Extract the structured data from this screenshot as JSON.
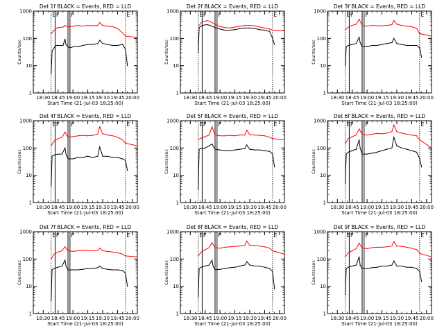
{
  "figure": {
    "xlabel": "Start Time (21-Jul-03 18:25:00)",
    "ylabel": "Counts/sec",
    "xtick_labels": [
      "18:30",
      "18:45",
      "19:00",
      "19:15",
      "19:30",
      "19:45",
      "20:00"
    ],
    "ytick_labels": [
      "1",
      "10",
      "100",
      "1000"
    ],
    "flag_letters": [
      "E",
      "F",
      "F",
      "E"
    ],
    "colors": {
      "events": "#000000",
      "lld": "#ff0000",
      "axes": "#000000",
      "background": "#ffffff"
    }
  },
  "chart_data": [
    {
      "type": "line",
      "title": "Det 1f BLACK = Events, RED = LLD",
      "xlabel": "Start Time (21-Jul-03 18:25:00)",
      "ylabel": "Counts/sec",
      "ylog": true,
      "ylim": [
        1,
        1000
      ],
      "xlim_minutes": [
        -5,
        100
      ],
      "markers": {
        "E": [
          13,
          88
        ],
        "F": [
          17,
          30,
          32
        ]
      },
      "series": [
        {
          "name": "Events",
          "color": "#000000",
          "x": [
            13,
            14,
            16,
            18,
            22,
            25,
            27,
            28,
            30,
            32,
            36,
            40,
            45,
            50,
            55,
            60,
            62,
            65,
            70,
            75,
            80,
            85,
            88,
            90
          ],
          "y": [
            5,
            35,
            45,
            55,
            55,
            55,
            95,
            60,
            50,
            45,
            50,
            50,
            55,
            60,
            60,
            65,
            85,
            65,
            60,
            55,
            55,
            60,
            40,
            10
          ]
        },
        {
          "name": "LLD",
          "color": "#ff0000",
          "x": [
            13,
            16,
            20,
            25,
            27,
            30,
            35,
            40,
            45,
            50,
            55,
            60,
            62,
            65,
            70,
            75,
            80,
            85,
            88,
            100
          ],
          "y": [
            150,
            200,
            250,
            260,
            300,
            260,
            280,
            300,
            280,
            300,
            290,
            300,
            380,
            300,
            280,
            270,
            230,
            160,
            120,
            110
          ]
        }
      ]
    },
    {
      "type": "line",
      "title": "Det 2f BLACK = Events, RED = LLD",
      "xlabel": "Start Time (21-Jul-03 18:25:00)",
      "ylabel": "Counts/sec",
      "ylog": true,
      "ylim": [
        1,
        1000
      ],
      "xlim_minutes": [
        -5,
        100
      ],
      "markers": {
        "E": [
          13,
          88
        ],
        "F": [
          17,
          30,
          32
        ]
      },
      "series": [
        {
          "name": "Events",
          "color": "#000000",
          "x": [
            13,
            14,
            17,
            22,
            25,
            30,
            35,
            40,
            45,
            50,
            55,
            60,
            65,
            70,
            75,
            80,
            85,
            88,
            90
          ],
          "y": [
            30,
            250,
            300,
            320,
            300,
            250,
            220,
            200,
            200,
            210,
            230,
            240,
            240,
            230,
            210,
            200,
            180,
            100,
            60
          ]
        },
        {
          "name": "LLD",
          "color": "#ff0000",
          "x": [
            13,
            17,
            22,
            25,
            30,
            35,
            40,
            45,
            50,
            55,
            60,
            65,
            70,
            75,
            80,
            85,
            88,
            100
          ],
          "y": [
            280,
            400,
            450,
            420,
            330,
            270,
            250,
            240,
            260,
            280,
            300,
            300,
            290,
            260,
            240,
            220,
            200,
            190
          ]
        }
      ]
    },
    {
      "type": "line",
      "title": "Det 3f BLACK = Events, RED = LLD",
      "xlabel": "Start Time (21-Jul-03 18:25:00)",
      "ylabel": "Counts/sec",
      "ylog": true,
      "ylim": [
        1,
        1000
      ],
      "xlim_minutes": [
        -5,
        100
      ],
      "markers": {
        "E": [
          13,
          88
        ],
        "F": [
          17,
          30,
          32
        ]
      },
      "series": [
        {
          "name": "Events",
          "color": "#000000",
          "x": [
            13,
            14,
            16,
            20,
            24,
            27,
            28,
            30,
            35,
            40,
            45,
            50,
            55,
            60,
            62,
            65,
            70,
            75,
            80,
            85,
            88,
            90
          ],
          "y": [
            10,
            50,
            55,
            60,
            65,
            110,
            70,
            50,
            50,
            55,
            55,
            60,
            65,
            70,
            100,
            65,
            60,
            55,
            55,
            55,
            45,
            20
          ]
        },
        {
          "name": "LLD",
          "color": "#ff0000",
          "x": [
            13,
            16,
            20,
            24,
            27,
            30,
            35,
            40,
            45,
            50,
            55,
            60,
            62,
            65,
            70,
            75,
            80,
            85,
            88,
            100
          ],
          "y": [
            200,
            260,
            300,
            330,
            500,
            300,
            280,
            300,
            290,
            290,
            300,
            320,
            450,
            330,
            300,
            280,
            270,
            230,
            150,
            120
          ]
        }
      ]
    },
    {
      "type": "line",
      "title": "Det 4f BLACK = Events, RED = LLD",
      "xlabel": "Start Time (21-Jul-03 18:25:00)",
      "ylabel": "Counts/sec",
      "ylog": true,
      "ylim": [
        1,
        1000
      ],
      "xlim_minutes": [
        -5,
        100
      ],
      "markers": {
        "E": [
          13,
          88
        ],
        "F": [
          17,
          30,
          32
        ]
      },
      "series": [
        {
          "name": "Events",
          "color": "#000000",
          "x": [
            13,
            14,
            16,
            20,
            24,
            27,
            28,
            30,
            35,
            40,
            45,
            50,
            55,
            60,
            62,
            65,
            70,
            75,
            80,
            85,
            88,
            90
          ],
          "y": [
            4,
            50,
            55,
            60,
            60,
            100,
            60,
            40,
            40,
            45,
            45,
            50,
            45,
            50,
            110,
            50,
            50,
            45,
            45,
            40,
            35,
            15
          ]
        },
        {
          "name": "LLD",
          "color": "#ff0000",
          "x": [
            13,
            16,
            20,
            24,
            27,
            30,
            35,
            40,
            45,
            50,
            55,
            60,
            62,
            65,
            70,
            75,
            80,
            85,
            88,
            100
          ],
          "y": [
            120,
            180,
            220,
            250,
            380,
            250,
            260,
            280,
            290,
            280,
            290,
            320,
            600,
            330,
            300,
            280,
            250,
            200,
            150,
            120
          ]
        }
      ]
    },
    {
      "type": "line",
      "title": "Det 5f BLACK = Events, RED = LLD",
      "xlabel": "Start Time (21-Jul-03 18:25:00)",
      "ylabel": "Counts/sec",
      "ylog": true,
      "ylim": [
        1,
        1000
      ],
      "xlim_minutes": [
        -5,
        100
      ],
      "markers": {
        "E": [
          13,
          88
        ],
        "F": [
          17,
          30,
          32
        ]
      },
      "series": [
        {
          "name": "Events",
          "color": "#000000",
          "x": [
            13,
            14,
            16,
            20,
            24,
            27,
            30,
            35,
            40,
            45,
            50,
            55,
            60,
            62,
            65,
            70,
            75,
            80,
            85,
            88,
            90
          ],
          "y": [
            3,
            90,
            95,
            100,
            120,
            140,
            90,
            85,
            80,
            80,
            85,
            90,
            95,
            130,
            90,
            85,
            85,
            80,
            75,
            60,
            20
          ]
        },
        {
          "name": "LLD",
          "color": "#ff0000",
          "x": [
            13,
            16,
            20,
            24,
            27,
            30,
            35,
            40,
            45,
            50,
            55,
            60,
            62,
            65,
            70,
            75,
            80,
            85,
            88,
            100
          ],
          "y": [
            200,
            230,
            260,
            300,
            600,
            300,
            280,
            280,
            290,
            280,
            300,
            300,
            450,
            310,
            300,
            290,
            280,
            250,
            220,
            200
          ]
        }
      ]
    },
    {
      "type": "line",
      "title": "Det 6f BLACK = Events, RED = LLD",
      "xlabel": "Start Time (21-Jul-03 18:25:00)",
      "ylabel": "Counts/sec",
      "ylog": true,
      "ylim": [
        1,
        1000
      ],
      "xlim_minutes": [
        -5,
        100
      ],
      "markers": {
        "E": [
          13,
          88
        ],
        "F": [
          17,
          30,
          32
        ]
      },
      "series": [
        {
          "name": "Events",
          "color": "#000000",
          "x": [
            13,
            14,
            16,
            20,
            24,
            27,
            28,
            30,
            35,
            40,
            45,
            50,
            55,
            60,
            62,
            65,
            70,
            75,
            80,
            85,
            88,
            90
          ],
          "y": [
            5,
            60,
            70,
            80,
            90,
            200,
            100,
            60,
            60,
            65,
            70,
            80,
            90,
            100,
            250,
            120,
            100,
            90,
            80,
            70,
            40,
            20
          ]
        },
        {
          "name": "LLD",
          "color": "#ff0000",
          "x": [
            13,
            16,
            20,
            24,
            27,
            30,
            35,
            40,
            45,
            50,
            55,
            60,
            62,
            65,
            70,
            75,
            80,
            85,
            88,
            100
          ],
          "y": [
            150,
            220,
            260,
            300,
            500,
            320,
            300,
            320,
            340,
            330,
            350,
            400,
            700,
            400,
            350,
            320,
            300,
            280,
            200,
            100
          ]
        }
      ]
    },
    {
      "type": "line",
      "title": "Det 7f BLACK = Events, RED = LLD",
      "xlabel": "Start Time (21-Jul-03 18:25:00)",
      "ylabel": "Counts/sec",
      "ylog": true,
      "ylim": [
        1,
        1000
      ],
      "xlim_minutes": [
        -5,
        100
      ],
      "markers": {
        "E": [
          13,
          88
        ],
        "F": [
          17,
          30,
          32
        ]
      },
      "series": [
        {
          "name": "Events",
          "color": "#000000",
          "x": [
            13,
            14,
            16,
            20,
            24,
            27,
            28,
            30,
            35,
            40,
            45,
            50,
            55,
            60,
            62,
            65,
            70,
            75,
            80,
            85,
            88,
            90
          ],
          "y": [
            3,
            40,
            45,
            50,
            55,
            90,
            55,
            40,
            40,
            40,
            42,
            45,
            45,
            48,
            55,
            45,
            42,
            40,
            40,
            38,
            30,
            10
          ]
        },
        {
          "name": "LLD",
          "color": "#ff0000",
          "x": [
            13,
            16,
            20,
            24,
            27,
            30,
            35,
            40,
            45,
            50,
            55,
            60,
            62,
            65,
            70,
            75,
            80,
            85,
            88,
            100
          ],
          "y": [
            100,
            150,
            180,
            200,
            280,
            200,
            190,
            200,
            210,
            200,
            200,
            210,
            250,
            200,
            190,
            180,
            170,
            150,
            130,
            120
          ]
        }
      ]
    },
    {
      "type": "line",
      "title": "Det 8f BLACK = Events, RED = LLD",
      "xlabel": "Start Time (21-Jul-03 18:25:00)",
      "ylabel": "Counts/sec",
      "ylog": true,
      "ylim": [
        1,
        1000
      ],
      "xlim_minutes": [
        -5,
        100
      ],
      "markers": {
        "E": [
          13,
          88
        ],
        "F": [
          17,
          30,
          32
        ]
      },
      "series": [
        {
          "name": "Events",
          "color": "#000000",
          "x": [
            13,
            14,
            16,
            20,
            24,
            27,
            28,
            30,
            35,
            40,
            45,
            50,
            55,
            60,
            62,
            65,
            70,
            75,
            80,
            85,
            88,
            90
          ],
          "y": [
            4,
            45,
            50,
            55,
            60,
            90,
            55,
            40,
            42,
            45,
            48,
            50,
            55,
            60,
            80,
            60,
            55,
            55,
            50,
            45,
            35,
            8
          ]
        },
        {
          "name": "LLD",
          "color": "#ff0000",
          "x": [
            13,
            16,
            20,
            24,
            27,
            30,
            35,
            40,
            45,
            50,
            55,
            60,
            62,
            65,
            70,
            75,
            80,
            85,
            88,
            100
          ],
          "y": [
            130,
            180,
            220,
            260,
            400,
            260,
            250,
            270,
            280,
            290,
            300,
            320,
            450,
            320,
            310,
            300,
            280,
            250,
            200,
            150
          ]
        }
      ]
    },
    {
      "type": "line",
      "title": "Det 9f BLACK = Events, RED = LLD",
      "xlabel": "Start Time (21-Jul-03 18:25:00)",
      "ylabel": "Counts/sec",
      "ylog": true,
      "ylim": [
        1,
        1000
      ],
      "xlim_minutes": [
        -5,
        100
      ],
      "markers": {
        "E": [
          13,
          88
        ],
        "F": [
          17,
          30,
          32
        ]
      },
      "series": [
        {
          "name": "Events",
          "color": "#000000",
          "x": [
            13,
            14,
            16,
            20,
            24,
            27,
            28,
            30,
            35,
            40,
            45,
            50,
            55,
            60,
            62,
            65,
            70,
            75,
            80,
            85,
            88,
            90
          ],
          "y": [
            5,
            45,
            50,
            55,
            60,
            120,
            60,
            45,
            45,
            48,
            50,
            55,
            55,
            60,
            85,
            55,
            55,
            50,
            50,
            45,
            35,
            15
          ]
        },
        {
          "name": "LLD",
          "color": "#ff0000",
          "x": [
            13,
            16,
            20,
            24,
            27,
            30,
            35,
            40,
            45,
            50,
            55,
            60,
            62,
            65,
            70,
            75,
            80,
            85,
            88,
            100
          ],
          "y": [
            120,
            170,
            200,
            240,
            380,
            250,
            240,
            260,
            270,
            270,
            280,
            300,
            430,
            300,
            290,
            270,
            250,
            220,
            160,
            120
          ]
        }
      ]
    }
  ]
}
